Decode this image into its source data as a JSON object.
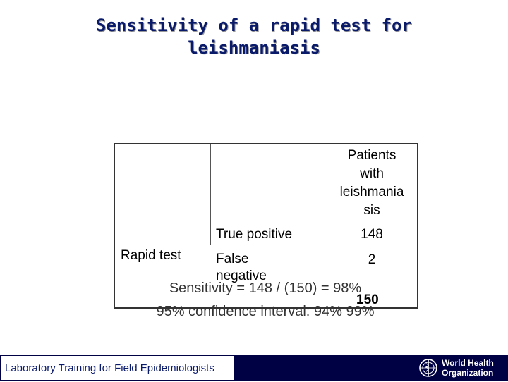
{
  "title": {
    "line1": "Sensitivity of a rapid test for",
    "line2": "leishmaniasis"
  },
  "table": {
    "column_header": "Patients with leishmaniasis",
    "column_header_lines": [
      "Patients",
      "with",
      "leishmania",
      "sis"
    ],
    "row_group_label": "Rapid test",
    "rows": [
      {
        "label": "True positive",
        "value": "148"
      },
      {
        "label_lines": [
          "False",
          "negative"
        ],
        "value": "2"
      }
    ],
    "total": "150"
  },
  "sensitivity": "Sensitivity = 148 / (150) = 98%",
  "confidence_interval": "95% confidence interval: 94% 99%",
  "footer": {
    "text": "Laboratory Training for Field Epidemiologists",
    "logo_line1": "World Health",
    "logo_line2": "Organization",
    "logo_icon": "who-emblem-icon"
  },
  "colors": {
    "title": "#0a1a6b",
    "footer_bar": "#000044"
  }
}
